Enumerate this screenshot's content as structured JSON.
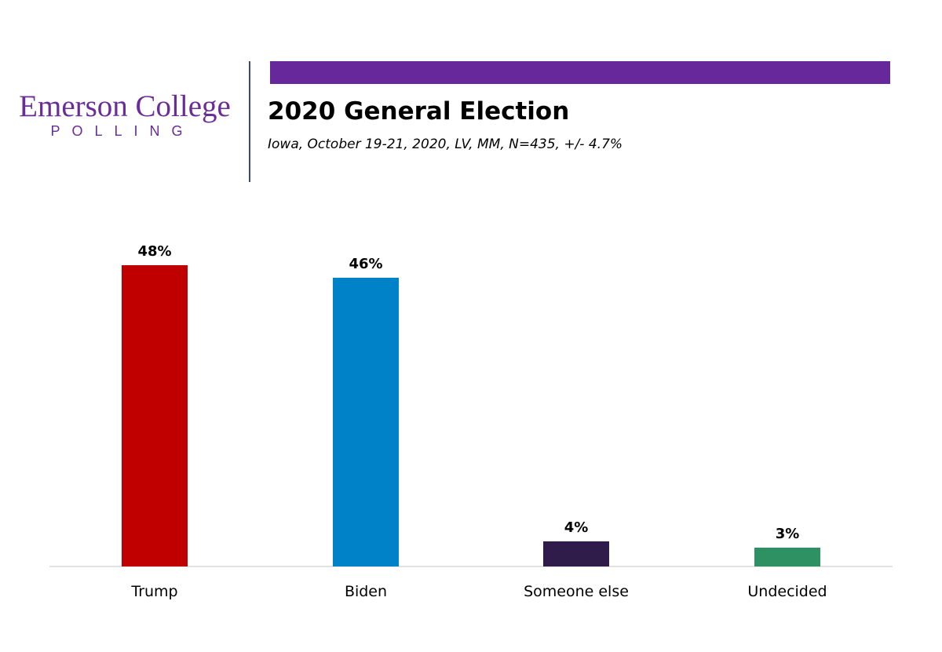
{
  "logo": {
    "name": "Emerson College",
    "subname": "POLLING"
  },
  "header": {
    "title": "2020 General Election",
    "subtitle": "Iowa, October 19-21, 2020, LV, MM, N=435, +/- 4.7%",
    "accent_color": "#66289a",
    "divider_color": "#3d4a78"
  },
  "chart_data": {
    "type": "bar",
    "categories": [
      "Trump",
      "Biden",
      "Someone else",
      "Undecided"
    ],
    "values": [
      48,
      46,
      4,
      3
    ],
    "value_labels": [
      "48%",
      "46%",
      "4%",
      "3%"
    ],
    "colors": [
      "#c00000",
      "#0082c8",
      "#2f1c4a",
      "#2e9163"
    ],
    "title": "",
    "xlabel": "",
    "ylabel": "",
    "ylim": [
      0,
      48
    ],
    "grid": false,
    "legend": "none"
  }
}
